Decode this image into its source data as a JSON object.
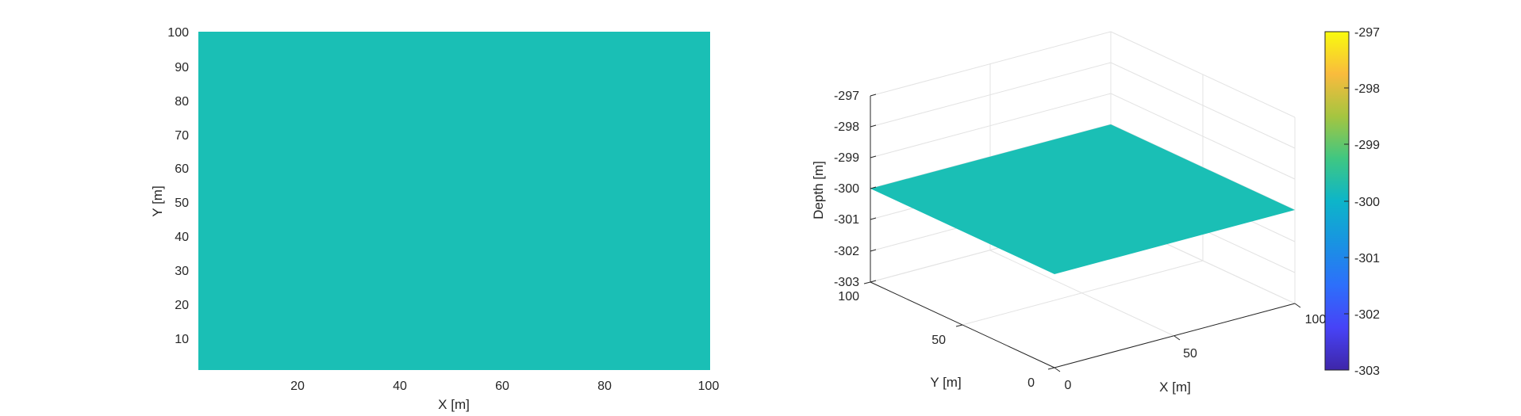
{
  "chart_data": [
    {
      "type": "heatmap",
      "view": "2d top view",
      "xlabel": "X [m]",
      "ylabel": "Y [m]",
      "xlim": [
        0,
        100
      ],
      "ylim": [
        0,
        100
      ],
      "x_ticks": [
        "20",
        "40",
        "60",
        "80",
        "100"
      ],
      "y_ticks": [
        "10",
        "20",
        "30",
        "40",
        "50",
        "60",
        "70",
        "80",
        "90",
        "100"
      ],
      "z_value": -300,
      "fill_color": "#1abfb5",
      "grid": false
    },
    {
      "type": "surface",
      "view": "3d perspective",
      "xlabel": "X [m]",
      "ylabel": "Y [m]",
      "zlabel": "Depth [m]",
      "xlim": [
        0,
        100
      ],
      "ylim": [
        0,
        100
      ],
      "zlim": [
        -303,
        -297
      ],
      "x_ticks": [
        "0",
        "50",
        "100"
      ],
      "y_ticks": [
        "0",
        "50",
        "100"
      ],
      "z_ticks": [
        "-297",
        "-298",
        "-299",
        "-300",
        "-301",
        "-302",
        "-303"
      ],
      "z_value": -300,
      "fill_color": "#1abfb5",
      "grid": true
    }
  ],
  "colorbar": {
    "min": -303,
    "max": -297,
    "ticks": [
      "-297",
      "-298",
      "-299",
      "-300",
      "-301",
      "-302",
      "-303"
    ],
    "colormap": "parula",
    "location": "right"
  }
}
